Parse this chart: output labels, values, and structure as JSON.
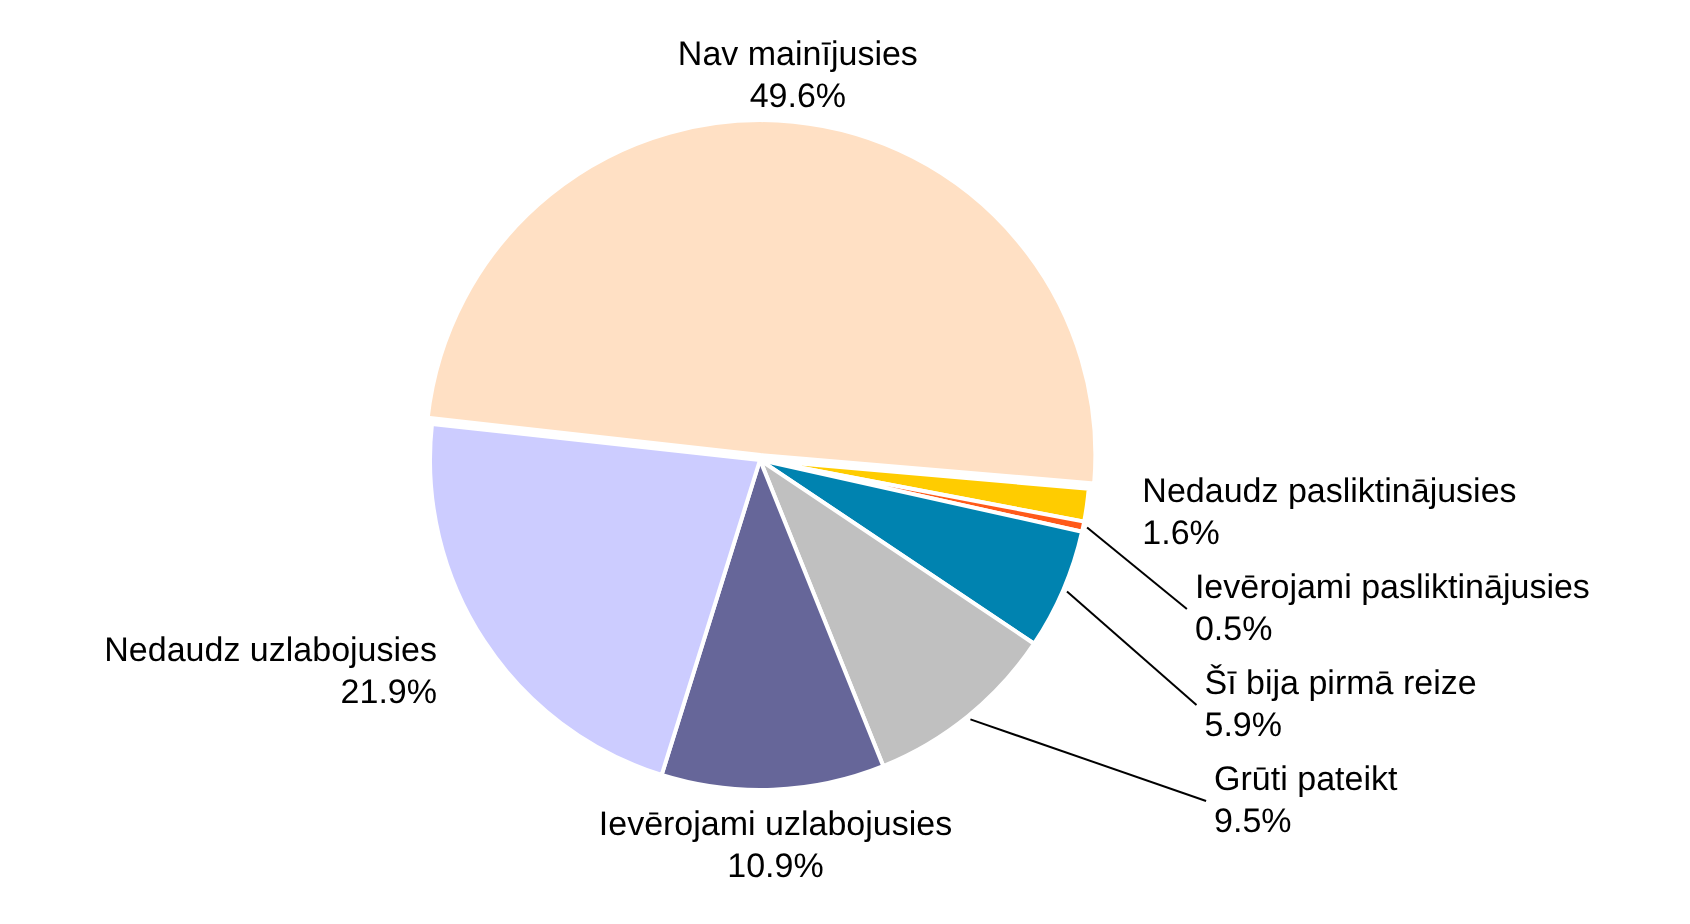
{
  "chart_data": {
    "type": "pie",
    "categories": [
      "Nedaudz pasliktinājusies",
      "Ievērojami pasliktinājusies",
      "Šī bija pirmā reize",
      "Grūti pateikt",
      "Ievērojami uzlabojusies",
      "Nedaudz uzlabojusies",
      "Nav mainījusies"
    ],
    "values": [
      1.6,
      0.5,
      5.9,
      9.5,
      10.9,
      21.9,
      49.6
    ],
    "value_labels": [
      "1.6%",
      "0.5%",
      "5.9%",
      "9.5%",
      "10.9%",
      "21.9%",
      "49.6%"
    ],
    "colors": [
      "#ffcc00",
      "#ff5a1a",
      "#0083b0",
      "#c0c0c0",
      "#666699",
      "#ccccff",
      "#ffe0c4"
    ]
  }
}
